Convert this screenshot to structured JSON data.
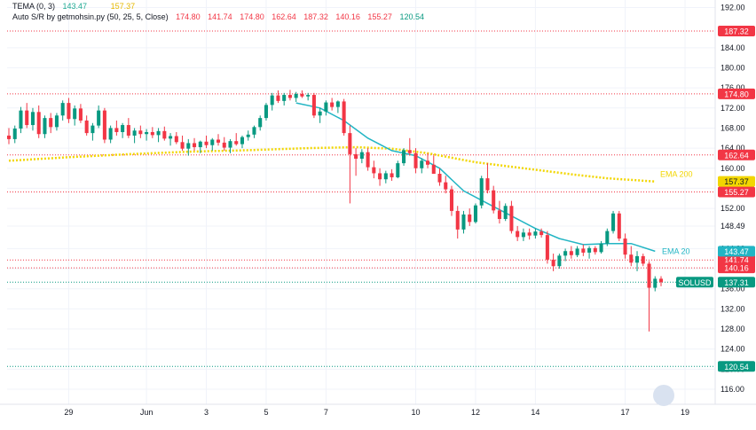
{
  "legend": {
    "tema_label": "TEMA (0, 3)",
    "tema_v1": "143.47",
    "tema_v2": "157.37",
    "sr_label": "Auto S/R by getmohsin.py (50, 25, 5, Close)",
    "sr_values": [
      "174.80",
      "141.74",
      "174.80",
      "162.64",
      "187.32",
      "140.16",
      "155.27",
      "120.54"
    ]
  },
  "colors": {
    "up": "#089981",
    "down": "#f23645",
    "ema20": "#22b5c4",
    "ema200": "#f2d600",
    "sr_line": "#f23645",
    "sr_bottom": "#089981"
  },
  "chart_data": {
    "type": "candlestick",
    "symbol": "SOLUSD",
    "last_price": "137.31",
    "y_ticks": [
      "192.00",
      "187.32",
      "184.00",
      "180.00",
      "174.80",
      "174.80",
      "172.00",
      "168.00",
      "164.00",
      "162.64",
      "160.00",
      "157.37",
      "155.27",
      "152.00",
      "148.49",
      "143.47",
      "141.74",
      "140.16",
      "137.31",
      "136.00",
      "132.00",
      "128.00",
      "124.00",
      "120.54",
      "120.00",
      "116.00"
    ],
    "y_tick_values": [
      192,
      184,
      180,
      176,
      172,
      168,
      164,
      160,
      156,
      152,
      148.49,
      144,
      140,
      136,
      132,
      128,
      124,
      120,
      116
    ],
    "ylim": [
      113,
      193.5
    ],
    "x_labels": [
      {
        "label": "29",
        "x": 10
      },
      {
        "label": "Jun",
        "x": 23
      },
      {
        "label": "3",
        "x": 33
      },
      {
        "label": "5",
        "x": 43
      },
      {
        "label": "7",
        "x": 53
      },
      {
        "label": "10",
        "x": 68
      },
      {
        "label": "12",
        "x": 78
      },
      {
        "label": "14",
        "x": 88
      },
      {
        "label": "17",
        "x": 103
      },
      {
        "label": "19",
        "x": 113
      }
    ],
    "sr_levels": [
      {
        "value": 187.32,
        "label": "187.32",
        "color": "#f23645"
      },
      {
        "value": 174.8,
        "label": "174.80",
        "color": "#f23645"
      },
      {
        "value": 162.64,
        "label": "162.64",
        "color": "#f23645"
      },
      {
        "value": 155.27,
        "label": "155.27",
        "color": "#f23645"
      },
      {
        "value": 141.74,
        "label": "141.74",
        "color": "#f23645"
      },
      {
        "value": 140.16,
        "label": "140.16",
        "color": "#f23645"
      },
      {
        "value": 120.54,
        "label": "120.54",
        "color": "#089981"
      }
    ],
    "ema20_label": "EMA 20",
    "ema20_value": "143.47",
    "ema200_label": "EMA 200",
    "ema200_value": "157.37",
    "series_ohlc": [
      [
        0,
        166.5,
        168.0,
        164.8,
        165.8
      ],
      [
        1,
        165.8,
        168.5,
        165.0,
        167.9
      ],
      [
        2,
        167.9,
        172.2,
        167.0,
        171.5
      ],
      [
        3,
        171.5,
        173.0,
        168.0,
        168.6
      ],
      [
        4,
        168.6,
        172.0,
        167.5,
        171.2
      ],
      [
        5,
        171.2,
        172.5,
        166.0,
        166.8
      ],
      [
        6,
        166.8,
        170.5,
        166.0,
        170.0
      ],
      [
        7,
        170.0,
        171.0,
        167.0,
        168.2
      ],
      [
        8,
        168.2,
        171.0,
        167.5,
        170.5
      ],
      [
        9,
        170.5,
        173.5,
        169.5,
        173.0
      ],
      [
        10,
        173.0,
        174.0,
        169.0,
        169.8
      ],
      [
        11,
        169.8,
        172.5,
        168.5,
        171.9
      ],
      [
        12,
        171.9,
        172.8,
        169.0,
        169.5
      ],
      [
        13,
        169.5,
        170.5,
        166.5,
        167.0
      ],
      [
        14,
        167.0,
        169.0,
        165.5,
        168.5
      ],
      [
        15,
        168.5,
        172.5,
        168.0,
        171.5
      ],
      [
        16,
        171.5,
        172.0,
        165.0,
        165.7
      ],
      [
        17,
        165.7,
        168.5,
        165.0,
        168.0
      ],
      [
        18,
        168.0,
        169.5,
        166.5,
        167.2
      ],
      [
        19,
        167.2,
        169.0,
        166.0,
        168.6
      ],
      [
        20,
        168.6,
        170.0,
        166.0,
        166.5
      ],
      [
        21,
        166.5,
        168.0,
        165.0,
        167.5
      ],
      [
        22,
        167.5,
        168.5,
        166.0,
        166.8
      ],
      [
        23,
        166.8,
        167.8,
        165.5,
        167.2
      ],
      [
        24,
        167.2,
        168.2,
        166.0,
        166.6
      ],
      [
        25,
        166.6,
        168.0,
        165.2,
        167.4
      ],
      [
        26,
        167.4,
        168.3,
        165.5,
        165.9
      ],
      [
        27,
        165.9,
        167.0,
        164.5,
        166.4
      ],
      [
        28,
        166.4,
        167.2,
        164.8,
        165.2
      ],
      [
        29,
        165.2,
        166.5,
        163.5,
        163.9
      ],
      [
        30,
        163.9,
        165.8,
        162.5,
        165.0
      ],
      [
        31,
        165.0,
        166.0,
        163.5,
        164.2
      ],
      [
        32,
        164.2,
        165.5,
        163.0,
        165.3
      ],
      [
        33,
        165.3,
        166.5,
        164.0,
        164.6
      ],
      [
        34,
        164.6,
        166.0,
        163.5,
        165.7
      ],
      [
        35,
        165.7,
        166.8,
        164.5,
        165.1
      ],
      [
        36,
        165.1,
        166.2,
        163.5,
        164.1
      ],
      [
        37,
        164.1,
        165.8,
        163.0,
        165.4
      ],
      [
        38,
        165.4,
        167.0,
        164.5,
        164.8
      ],
      [
        39,
        164.8,
        166.5,
        164.0,
        166.2
      ],
      [
        40,
        166.2,
        167.5,
        165.5,
        166.7
      ],
      [
        41,
        166.7,
        168.5,
        166.0,
        168.2
      ],
      [
        42,
        168.2,
        170.5,
        167.5,
        170.0
      ],
      [
        43,
        170.0,
        173.0,
        169.5,
        172.6
      ],
      [
        44,
        172.6,
        175.0,
        171.5,
        174.5
      ],
      [
        45,
        174.5,
        175.5,
        173.0,
        173.4
      ],
      [
        46,
        173.4,
        175.0,
        172.5,
        174.6
      ],
      [
        47,
        174.6,
        175.6,
        173.5,
        174.0
      ],
      [
        48,
        174.0,
        175.2,
        173.2,
        174.8
      ],
      [
        49,
        174.8,
        175.5,
        174.0,
        174.3
      ],
      [
        50,
        174.3,
        175.0,
        173.5,
        174.6
      ],
      [
        51,
        174.6,
        175.0,
        170.0,
        170.5
      ],
      [
        52,
        170.5,
        172.0,
        169.0,
        171.3
      ],
      [
        53,
        171.3,
        173.5,
        170.5,
        173.1
      ],
      [
        54,
        173.1,
        174.0,
        171.5,
        172.2
      ],
      [
        55,
        172.2,
        173.5,
        171.0,
        173.3
      ],
      [
        56,
        173.3,
        173.8,
        166.5,
        167.0
      ],
      [
        57,
        167.0,
        168.5,
        153.0,
        162.8
      ],
      [
        58,
        162.8,
        164.0,
        158.5,
        161.9
      ],
      [
        59,
        161.9,
        163.8,
        161.0,
        163.2
      ],
      [
        60,
        163.2,
        164.0,
        159.5,
        160.2
      ],
      [
        61,
        160.2,
        161.5,
        158.0,
        159.0
      ],
      [
        62,
        159.0,
        160.0,
        156.5,
        157.8
      ],
      [
        63,
        157.8,
        159.5,
        157.0,
        159.0
      ],
      [
        64,
        159.0,
        159.8,
        157.5,
        158.2
      ],
      [
        65,
        158.2,
        161.5,
        158.0,
        161.0
      ],
      [
        66,
        161.0,
        164.0,
        160.5,
        163.6
      ],
      [
        67,
        163.6,
        166.0,
        162.5,
        163.0
      ],
      [
        68,
        163.0,
        164.0,
        159.0,
        160.0
      ],
      [
        69,
        160.0,
        162.0,
        159.0,
        161.5
      ],
      [
        70,
        161.5,
        163.0,
        160.0,
        160.7
      ],
      [
        71,
        160.7,
        162.5,
        159.0,
        158.9
      ],
      [
        72,
        158.9,
        160.0,
        156.5,
        157.2
      ],
      [
        73,
        157.2,
        158.5,
        155.0,
        155.8
      ],
      [
        74,
        155.8,
        156.5,
        150.5,
        151.5
      ],
      [
        75,
        151.5,
        152.5,
        146.0,
        147.8
      ],
      [
        76,
        147.8,
        151.5,
        147.0,
        150.8
      ],
      [
        77,
        150.8,
        152.0,
        148.5,
        149.3
      ],
      [
        78,
        149.3,
        153.0,
        149.0,
        152.6
      ],
      [
        79,
        152.6,
        158.5,
        152.0,
        158.0
      ],
      [
        80,
        158.0,
        161.0,
        155.0,
        155.6
      ],
      [
        81,
        155.6,
        156.5,
        151.0,
        151.6
      ],
      [
        82,
        151.6,
        153.5,
        149.0,
        149.9
      ],
      [
        83,
        149.9,
        153.0,
        149.5,
        152.5
      ],
      [
        84,
        152.5,
        153.5,
        147.0,
        147.5
      ],
      [
        85,
        147.5,
        148.5,
        145.5,
        146.3
      ],
      [
        86,
        146.3,
        148.0,
        145.5,
        147.2
      ],
      [
        87,
        147.2,
        148.0,
        145.8,
        146.6
      ],
      [
        88,
        146.6,
        148.0,
        146.0,
        147.4
      ],
      [
        89,
        147.4,
        148.0,
        146.2,
        146.7
      ],
      [
        90,
        146.7,
        147.5,
        141.0,
        141.8
      ],
      [
        91,
        141.8,
        143.0,
        139.5,
        140.5
      ],
      [
        92,
        140.5,
        143.0,
        140.0,
        142.6
      ],
      [
        93,
        142.6,
        144.0,
        141.5,
        143.5
      ],
      [
        94,
        143.5,
        144.5,
        142.0,
        142.7
      ],
      [
        95,
        142.7,
        144.5,
        142.3,
        144.0
      ],
      [
        96,
        144.0,
        144.8,
        142.5,
        143.2
      ],
      [
        97,
        143.2,
        144.5,
        142.0,
        144.1
      ],
      [
        98,
        144.1,
        144.5,
        142.8,
        143.3
      ],
      [
        99,
        143.3,
        145.5,
        143.0,
        145.0
      ],
      [
        100,
        145.0,
        148.0,
        144.5,
        147.5
      ],
      [
        101,
        147.5,
        151.5,
        147.0,
        151.0
      ],
      [
        102,
        151.0,
        151.5,
        145.5,
        146.0
      ],
      [
        103,
        146.0,
        147.0,
        142.0,
        142.8
      ],
      [
        104,
        142.8,
        144.5,
        140.5,
        141.2
      ],
      [
        105,
        141.2,
        143.5,
        139.5,
        142.5
      ],
      [
        106,
        142.5,
        143.0,
        140.5,
        141.0
      ],
      [
        107,
        141.0,
        141.5,
        127.5,
        136.2
      ],
      [
        108,
        136.2,
        138.5,
        135.5,
        138.0
      ],
      [
        109,
        138.0,
        138.5,
        136.5,
        137.31
      ]
    ],
    "ema20_points": [
      [
        48,
        173.0
      ],
      [
        52,
        172.0
      ],
      [
        56,
        169.5
      ],
      [
        60,
        166.0
      ],
      [
        64,
        163.5
      ],
      [
        68,
        162.5
      ],
      [
        72,
        160.0
      ],
      [
        76,
        155.5
      ],
      [
        80,
        153.0
      ],
      [
        84,
        150.5
      ],
      [
        88,
        148.0
      ],
      [
        92,
        146.0
      ],
      [
        96,
        144.8
      ],
      [
        100,
        145.0
      ],
      [
        104,
        145.0
      ],
      [
        108,
        143.47
      ]
    ],
    "ema200_points": [
      [
        0,
        161.5
      ],
      [
        10,
        162.2
      ],
      [
        20,
        162.8
      ],
      [
        30,
        163.3
      ],
      [
        40,
        163.6
      ],
      [
        50,
        164.0
      ],
      [
        58,
        164.2
      ],
      [
        64,
        163.9
      ],
      [
        70,
        163.0
      ],
      [
        78,
        161.2
      ],
      [
        86,
        160.0
      ],
      [
        94,
        158.8
      ],
      [
        100,
        158.0
      ],
      [
        108,
        157.37
      ]
    ]
  }
}
